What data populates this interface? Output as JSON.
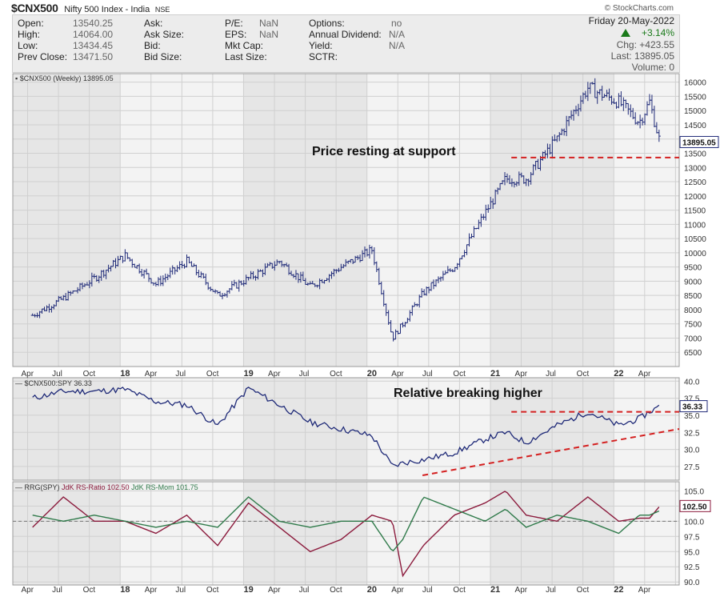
{
  "header": {
    "symbol": "$CNX500",
    "name": "Nifty 500 Index - India",
    "exchange": "NSE",
    "watermark": "© StockCharts.com"
  },
  "quote": {
    "labels": [
      "Open:",
      "High:",
      "Low:",
      "Prev Close:"
    ],
    "values": [
      "13540.25",
      "14064.00",
      "13434.45",
      "13471.50"
    ],
    "labels2": [
      "Ask:",
      "Ask Size:",
      "Bid:",
      "Bid Size:"
    ],
    "labels3": [
      "P/E:",
      "EPS:",
      "Mkt Cap:",
      "Last Size:"
    ],
    "values3": [
      "NaN",
      "NaN",
      "",
      ""
    ],
    "labels4": [
      "Options:",
      "Annual Dividend:",
      "Yield:",
      "SCTR:"
    ],
    "values4": [
      "no",
      "N/A",
      "N/A",
      ""
    ],
    "date": "Friday  20-May-2022",
    "pct_change": "+3.14%",
    "chg": "Chg:  +423.55",
    "last": "Last:  13895.05",
    "volume": "Volume:     0"
  },
  "chart_data": [
    {
      "type": "ohlc",
      "legend": "$CNX500 (Weekly) 13895.05",
      "last_value": "13895.05",
      "y_ticks": [
        6500,
        7000,
        7500,
        8000,
        8500,
        9000,
        9500,
        10000,
        10500,
        11000,
        11500,
        12000,
        12500,
        13000,
        13500,
        14000,
        14500,
        15000,
        15500,
        16000
      ],
      "ylim": [
        6000,
        16300
      ],
      "x": [
        "2017-04",
        "2017-07",
        "2017-10",
        "2018-01",
        "2018-04",
        "2018-07",
        "2018-10",
        "2019-01",
        "2019-04",
        "2019-07",
        "2019-10",
        "2020-01",
        "2020-03",
        "2020-04",
        "2020-06",
        "2020-09",
        "2020-12",
        "2021-02",
        "2021-04",
        "2021-07",
        "2021-10",
        "2022-01",
        "2022-03",
        "2022-04",
        "2022-05"
      ],
      "close": [
        7800,
        8400,
        9100,
        9900,
        8900,
        9700,
        8500,
        9100,
        9700,
        8800,
        9500,
        10100,
        7000,
        7500,
        8600,
        9500,
        11400,
        12600,
        12600,
        14000,
        15800,
        15300,
        14600,
        15300,
        13895
      ],
      "annotation": "Price resting at support",
      "support_level": 13350
    },
    {
      "type": "line",
      "legend": "$CNX500:SPY 36.33",
      "last_value": "36.33",
      "y_ticks": [
        27.5,
        30.0,
        32.5,
        35.0,
        37.5,
        40.0
      ],
      "ylim": [
        25.5,
        40.5
      ],
      "x": [
        "2017-04",
        "2017-07",
        "2017-10",
        "2018-01",
        "2018-04",
        "2018-07",
        "2018-10",
        "2019-01",
        "2019-04",
        "2019-07",
        "2019-10",
        "2020-01",
        "2020-03",
        "2020-04",
        "2020-06",
        "2020-09",
        "2020-12",
        "2021-02",
        "2021-04",
        "2021-07",
        "2021-10",
        "2022-01",
        "2022-03",
        "2022-04",
        "2022-05"
      ],
      "values": [
        37.5,
        38.5,
        38.5,
        38.8,
        37.0,
        36.5,
        33.5,
        39.0,
        36.5,
        34.0,
        33.0,
        32.0,
        27.5,
        28.0,
        28.5,
        29.5,
        31.5,
        32.5,
        31.0,
        33.5,
        35.5,
        33.5,
        34.5,
        35.5,
        36.33
      ],
      "annotation": "Relative breaking higher",
      "resistance_level": 35.5,
      "trendline": [
        [
          2020.45,
          26.2
        ],
        [
          2022.75,
          33.0
        ]
      ]
    },
    {
      "type": "line",
      "legend_prefix": "RRG(SPY)",
      "series": [
        {
          "name": "JdK RS-Ratio 102.50",
          "color": "#8b1a3c",
          "values": [
            99,
            104,
            100,
            100,
            98,
            101,
            96,
            103,
            99,
            95,
            97,
            101,
            100,
            91,
            96,
            101,
            103,
            105,
            101,
            100,
            104,
            100,
            100.5,
            100.5,
            102.5
          ]
        },
        {
          "name": "JdK RS-Mom 101.75",
          "color": "#2f7a4a",
          "values": [
            101,
            100,
            101,
            100,
            99,
            100,
            99,
            104,
            100,
            99,
            100,
            100,
            95,
            97,
            104,
            102,
            100,
            102,
            99,
            101,
            100,
            98,
            101,
            101,
            101.75
          ]
        }
      ],
      "last_value": "102.50",
      "y_ticks": [
        90.0,
        92.5,
        95.0,
        97.5,
        100.0,
        102.5,
        105.0
      ],
      "ylim": [
        89.5,
        106.5
      ],
      "x": [
        "2017-04",
        "2017-07",
        "2017-10",
        "2018-01",
        "2018-04",
        "2018-07",
        "2018-10",
        "2019-01",
        "2019-04",
        "2019-07",
        "2019-10",
        "2020-01",
        "2020-03",
        "2020-04",
        "2020-06",
        "2020-09",
        "2020-12",
        "2021-02",
        "2021-04",
        "2021-07",
        "2021-10",
        "2022-01",
        "2022-03",
        "2022-04",
        "2022-05"
      ],
      "reference_level": 100.0
    }
  ],
  "x_axis_labels": [
    "Apr",
    "Jul",
    "Oct",
    "18",
    "Apr",
    "Jul",
    "Oct",
    "19",
    "Apr",
    "Jul",
    "Oct",
    "20",
    "Apr",
    "Jul",
    "Oct",
    "21",
    "Apr",
    "Jul",
    "Oct",
    "22",
    "Apr"
  ],
  "colors": {
    "price": "#1f2a78",
    "annotation": "#d42020",
    "rs_ratio": "#8b1a3c",
    "rs_mom": "#2f7a4a"
  }
}
